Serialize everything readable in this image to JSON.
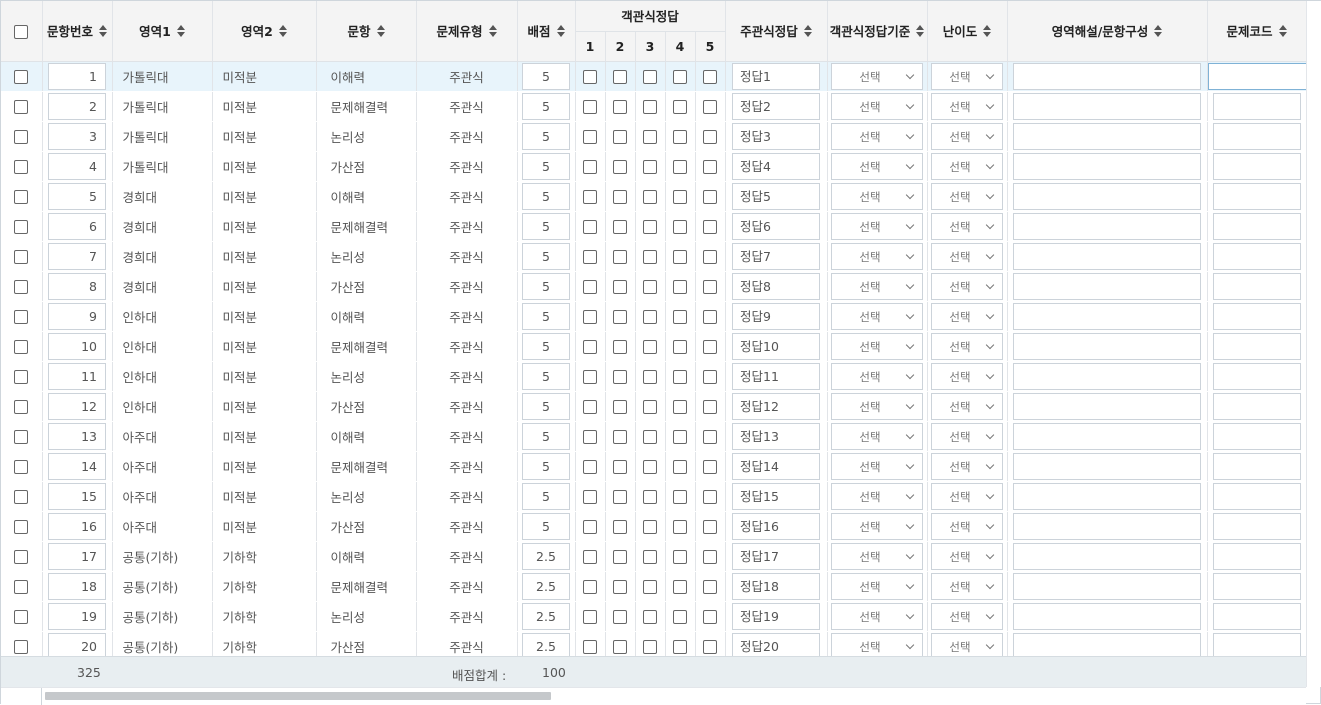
{
  "header": {
    "no": "문항번호",
    "area1": "영역1",
    "area2": "영역2",
    "item": "문항",
    "type": "문제유형",
    "score": "배점",
    "objective": "객관식정답",
    "obj_nums": [
      "1",
      "2",
      "3",
      "4",
      "5"
    ],
    "subjective": "주관식정답",
    "criteria": "객관식정답기준",
    "difficulty": "난이도",
    "explanation": "영역해설/문항구성",
    "code": "문제코드"
  },
  "select_placeholder": "선택",
  "rows": [
    {
      "no": "1",
      "a1": "가톨릭대",
      "a2": "미적분",
      "item": "이해력",
      "type": "주관식",
      "score": "5",
      "ans": "정답1"
    },
    {
      "no": "2",
      "a1": "가톨릭대",
      "a2": "미적분",
      "item": "문제해결력",
      "type": "주관식",
      "score": "5",
      "ans": "정답2"
    },
    {
      "no": "3",
      "a1": "가톨릭대",
      "a2": "미적분",
      "item": "논리성",
      "type": "주관식",
      "score": "5",
      "ans": "정답3"
    },
    {
      "no": "4",
      "a1": "가톨릭대",
      "a2": "미적분",
      "item": "가산점",
      "type": "주관식",
      "score": "5",
      "ans": "정답4"
    },
    {
      "no": "5",
      "a1": "경희대",
      "a2": "미적분",
      "item": "이해력",
      "type": "주관식",
      "score": "5",
      "ans": "정답5"
    },
    {
      "no": "6",
      "a1": "경희대",
      "a2": "미적분",
      "item": "문제해결력",
      "type": "주관식",
      "score": "5",
      "ans": "정답6"
    },
    {
      "no": "7",
      "a1": "경희대",
      "a2": "미적분",
      "item": "논리성",
      "type": "주관식",
      "score": "5",
      "ans": "정답7"
    },
    {
      "no": "8",
      "a1": "경희대",
      "a2": "미적분",
      "item": "가산점",
      "type": "주관식",
      "score": "5",
      "ans": "정답8"
    },
    {
      "no": "9",
      "a1": "인하대",
      "a2": "미적분",
      "item": "이해력",
      "type": "주관식",
      "score": "5",
      "ans": "정답9"
    },
    {
      "no": "10",
      "a1": "인하대",
      "a2": "미적분",
      "item": "문제해결력",
      "type": "주관식",
      "score": "5",
      "ans": "정답10"
    },
    {
      "no": "11",
      "a1": "인하대",
      "a2": "미적분",
      "item": "논리성",
      "type": "주관식",
      "score": "5",
      "ans": "정답11"
    },
    {
      "no": "12",
      "a1": "인하대",
      "a2": "미적분",
      "item": "가산점",
      "type": "주관식",
      "score": "5",
      "ans": "정답12"
    },
    {
      "no": "13",
      "a1": "아주대",
      "a2": "미적분",
      "item": "이해력",
      "type": "주관식",
      "score": "5",
      "ans": "정답13"
    },
    {
      "no": "14",
      "a1": "아주대",
      "a2": "미적분",
      "item": "문제해결력",
      "type": "주관식",
      "score": "5",
      "ans": "정답14"
    },
    {
      "no": "15",
      "a1": "아주대",
      "a2": "미적분",
      "item": "논리성",
      "type": "주관식",
      "score": "5",
      "ans": "정답15"
    },
    {
      "no": "16",
      "a1": "아주대",
      "a2": "미적분",
      "item": "가산점",
      "type": "주관식",
      "score": "5",
      "ans": "정답16"
    },
    {
      "no": "17",
      "a1": "공통(기하)",
      "a2": "기하학",
      "item": "이해력",
      "type": "주관식",
      "score": "2.5",
      "ans": "정답17"
    },
    {
      "no": "18",
      "a1": "공통(기하)",
      "a2": "기하학",
      "item": "문제해결력",
      "type": "주관식",
      "score": "2.5",
      "ans": "정답18"
    },
    {
      "no": "19",
      "a1": "공통(기하)",
      "a2": "기하학",
      "item": "논리성",
      "type": "주관식",
      "score": "2.5",
      "ans": "정답19"
    },
    {
      "no": "20",
      "a1": "공통(기하)",
      "a2": "기하학",
      "item": "가산점",
      "type": "주관식",
      "score": "2.5",
      "ans": "정답20"
    }
  ],
  "footer": {
    "count": "325",
    "sum_label": "배점합계 :",
    "sum_value": "100"
  }
}
